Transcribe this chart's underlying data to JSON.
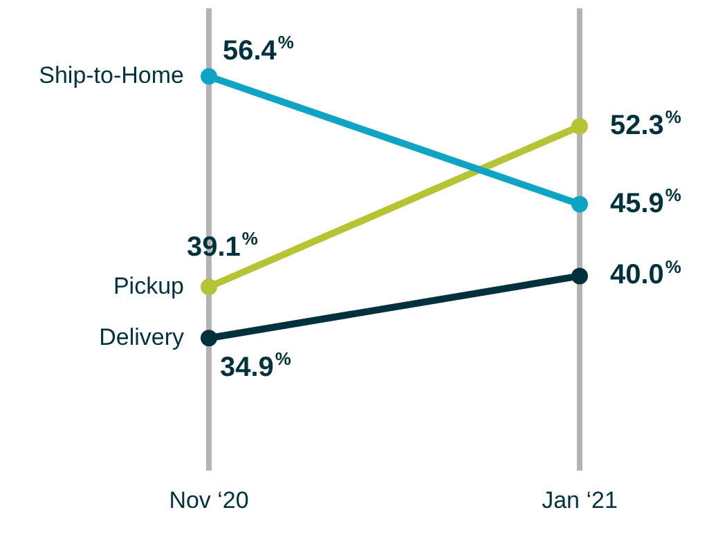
{
  "chart_data": {
    "type": "line",
    "categories": [
      "Nov ‘20",
      "Jan ‘21"
    ],
    "series": [
      {
        "name": "Ship-to-Home",
        "color": "#0fa3c4",
        "values": [
          56.4,
          45.9
        ],
        "value_labels": [
          "56.4%",
          "45.9%"
        ]
      },
      {
        "name": "Pickup",
        "color": "#b5c334",
        "values": [
          39.1,
          52.3
        ],
        "value_labels": [
          "39.1%",
          "52.3%"
        ]
      },
      {
        "name": "Delivery",
        "color": "#00313c",
        "values": [
          34.9,
          40.0
        ],
        "value_labels": [
          "34.9%",
          "40.0%"
        ]
      }
    ],
    "ylim": [
      24,
      62
    ],
    "tick_labels": "x",
    "grid": "x",
    "legend": false,
    "marker": "circle",
    "line_style": "solid"
  }
}
